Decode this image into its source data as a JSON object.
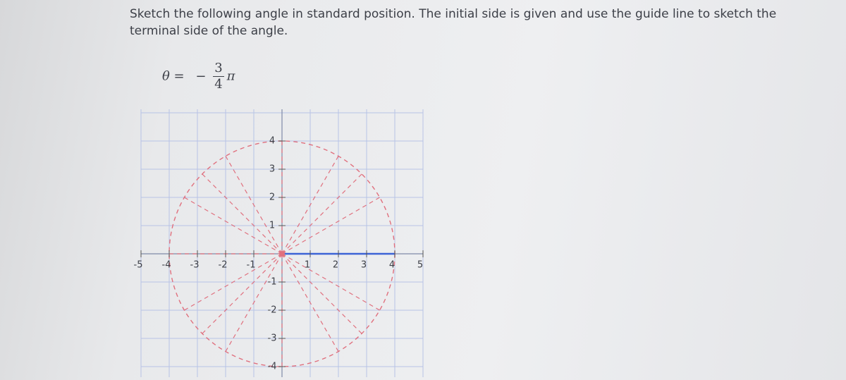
{
  "question": {
    "prompt": "Sketch the following angle in standard position. The initial side is given and use the guide line to sketch the terminal side of the angle.",
    "theta": "θ =",
    "sign": "−",
    "numerator": "3",
    "denominator": "4",
    "pi": "π"
  },
  "grid": {
    "x_labels": [
      -5,
      -4,
      -3,
      -2,
      -1,
      1,
      2,
      3,
      4,
      5
    ],
    "y_labels": [
      4,
      3,
      2,
      1,
      -1,
      -2,
      -3,
      -4
    ]
  }
}
